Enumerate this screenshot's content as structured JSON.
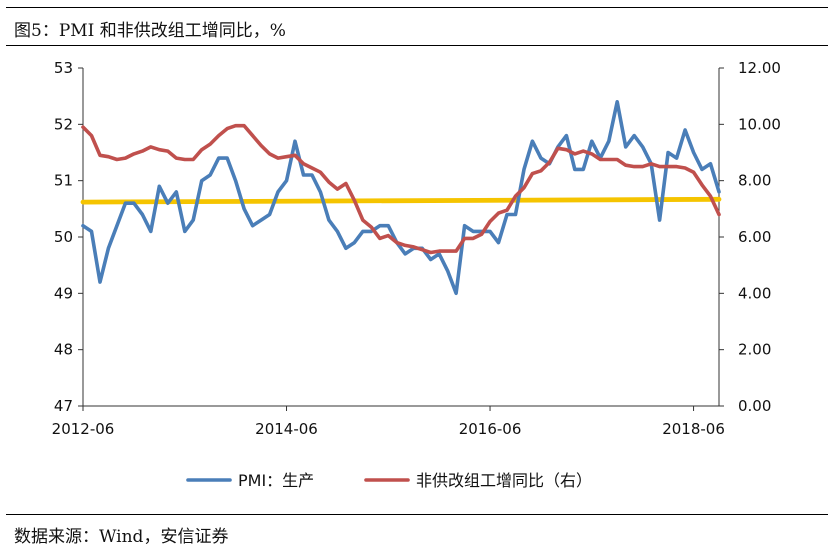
{
  "figure": {
    "title": "图5：PMI 和非供改组工增同比，%",
    "source": "数据来源：Wind，安信证券"
  },
  "chart_data": {
    "type": "line",
    "title": "图5：PMI 和非供改组工增同比，%",
    "x_ticks": [
      "2012-06",
      "2014-06",
      "2016-06",
      "2018-06"
    ],
    "x_range": [
      "2012-06",
      "2018-09"
    ],
    "y_left": {
      "range": [
        47,
        53
      ],
      "ticks": [
        "47",
        "48",
        "49",
        "50",
        "51",
        "52",
        "53"
      ]
    },
    "y_right": {
      "range": [
        0,
        12
      ],
      "ticks": [
        "0.00",
        "2.00",
        "4.00",
        "6.00",
        "8.00",
        "10.00",
        "12.00"
      ]
    },
    "legend_position": "bottom",
    "grid": false,
    "colors": {
      "pmi": "#4a7eb8",
      "ip": "#c0504d",
      "ref": "#f5c400"
    },
    "series": [
      {
        "name": "PMI：生产",
        "axis": "left",
        "dates": [
          "2012-06",
          "2012-07",
          "2012-08",
          "2012-09",
          "2012-10",
          "2012-11",
          "2012-12",
          "2013-01",
          "2013-02",
          "2013-03",
          "2013-04",
          "2013-05",
          "2013-06",
          "2013-07",
          "2013-08",
          "2013-09",
          "2013-10",
          "2013-11",
          "2013-12",
          "2014-01",
          "2014-02",
          "2014-03",
          "2014-04",
          "2014-05",
          "2014-06",
          "2014-07",
          "2014-08",
          "2014-09",
          "2014-10",
          "2014-11",
          "2014-12",
          "2015-01",
          "2015-02",
          "2015-03",
          "2015-04",
          "2015-05",
          "2015-06",
          "2015-07",
          "2015-08",
          "2015-09",
          "2015-10",
          "2015-11",
          "2015-12",
          "2016-01",
          "2016-02",
          "2016-03",
          "2016-04",
          "2016-05",
          "2016-06",
          "2016-07",
          "2016-08",
          "2016-09",
          "2016-10",
          "2016-11",
          "2016-12",
          "2017-01",
          "2017-02",
          "2017-03",
          "2017-04",
          "2017-05",
          "2017-06",
          "2017-07",
          "2017-08",
          "2017-09",
          "2017-10",
          "2017-11",
          "2017-12",
          "2018-01",
          "2018-02",
          "2018-03",
          "2018-04",
          "2018-05",
          "2018-06",
          "2018-07",
          "2018-08",
          "2018-09"
        ],
        "values": [
          50.2,
          50.1,
          49.2,
          49.8,
          50.2,
          50.6,
          50.6,
          50.4,
          50.1,
          50.9,
          50.6,
          50.8,
          50.1,
          50.3,
          51.0,
          51.1,
          51.4,
          51.4,
          51.0,
          50.5,
          50.2,
          50.3,
          50.4,
          50.8,
          51.0,
          51.7,
          51.1,
          51.1,
          50.8,
          50.3,
          50.1,
          49.8,
          49.9,
          50.1,
          50.1,
          50.2,
          50.2,
          49.9,
          49.7,
          49.8,
          49.8,
          49.6,
          49.7,
          49.4,
          49.0,
          50.2,
          50.1,
          50.1,
          50.1,
          49.9,
          50.4,
          50.4,
          51.2,
          51.7,
          51.4,
          51.3,
          51.6,
          51.8,
          51.2,
          51.2,
          51.7,
          51.4,
          51.7,
          52.4,
          51.6,
          51.8,
          51.6,
          51.3,
          50.3,
          51.5,
          51.4,
          51.9,
          51.5,
          51.2,
          51.3,
          50.8
        ]
      },
      {
        "name": "非供改组工增同比（右）",
        "axis": "right",
        "dates": [
          "2012-06",
          "2012-07",
          "2012-08",
          "2012-09",
          "2012-10",
          "2012-11",
          "2012-12",
          "2013-01",
          "2013-02",
          "2013-03",
          "2013-04",
          "2013-05",
          "2013-06",
          "2013-07",
          "2013-08",
          "2013-09",
          "2013-10",
          "2013-11",
          "2013-12",
          "2014-01",
          "2014-02",
          "2014-03",
          "2014-04",
          "2014-05",
          "2014-06",
          "2014-07",
          "2014-08",
          "2014-09",
          "2014-10",
          "2014-11",
          "2014-12",
          "2015-01",
          "2015-02",
          "2015-03",
          "2015-04",
          "2015-05",
          "2015-06",
          "2015-07",
          "2015-08",
          "2015-09",
          "2015-10",
          "2015-11",
          "2015-12",
          "2016-01",
          "2016-02",
          "2016-03",
          "2016-04",
          "2016-05",
          "2016-06",
          "2016-07",
          "2016-08",
          "2016-09",
          "2016-10",
          "2016-11",
          "2016-12",
          "2017-01",
          "2017-02",
          "2017-03",
          "2017-04",
          "2017-05",
          "2017-06",
          "2017-07",
          "2017-08",
          "2017-09",
          "2017-10",
          "2017-11",
          "2017-12",
          "2018-01",
          "2018-02",
          "2018-03",
          "2018-04",
          "2018-05",
          "2018-06",
          "2018-07",
          "2018-08",
          "2018-09"
        ],
        "values": [
          9.9,
          9.6,
          8.9,
          8.85,
          8.75,
          8.8,
          8.95,
          9.05,
          9.2,
          9.1,
          9.05,
          8.8,
          8.75,
          8.75,
          9.1,
          9.3,
          9.6,
          9.85,
          9.95,
          9.95,
          9.6,
          9.25,
          8.95,
          8.8,
          8.85,
          8.9,
          8.6,
          8.45,
          8.3,
          7.95,
          7.7,
          7.9,
          7.3,
          6.6,
          6.35,
          5.95,
          6.05,
          5.8,
          5.7,
          5.65,
          5.55,
          5.45,
          5.5,
          5.5,
          5.5,
          5.95,
          5.95,
          6.1,
          6.55,
          6.85,
          6.95,
          7.45,
          7.75,
          8.25,
          8.35,
          8.65,
          9.15,
          9.1,
          8.95,
          9.05,
          8.95,
          8.75,
          8.75,
          8.75,
          8.55,
          8.5,
          8.5,
          8.6,
          8.5,
          8.5,
          8.5,
          8.45,
          8.3,
          7.85,
          7.45,
          6.8
        ]
      },
      {
        "name": "",
        "axis": "left",
        "dates": [
          "2012-06",
          "2018-09"
        ],
        "values": [
          50.62,
          50.67
        ]
      }
    ]
  }
}
